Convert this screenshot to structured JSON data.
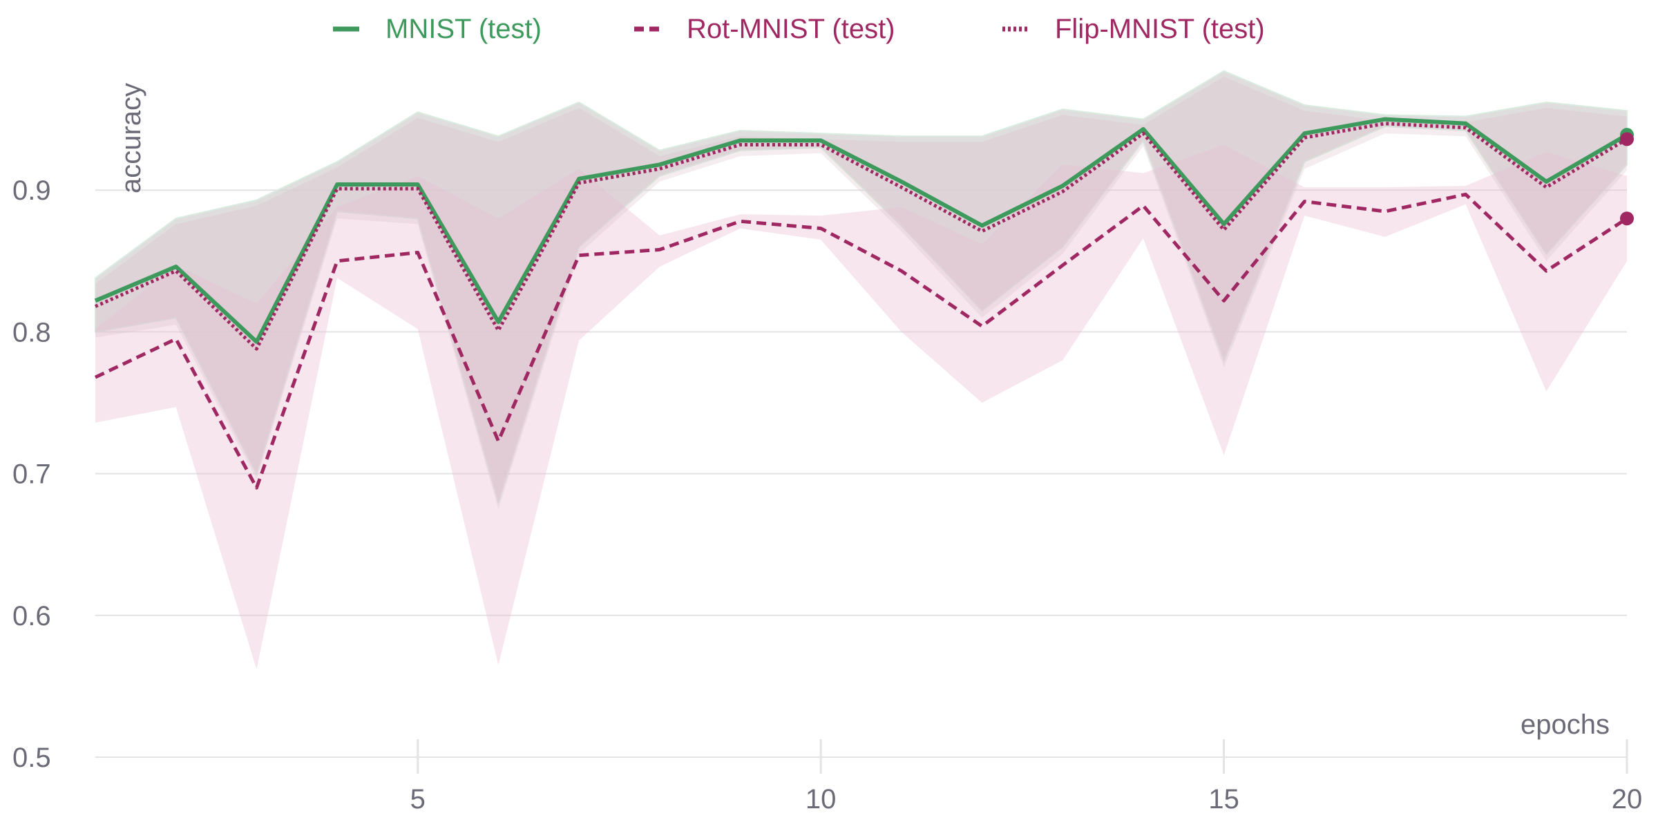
{
  "chart_data": {
    "type": "line",
    "xlabel": "epochs",
    "ylabel": "accuracy",
    "xlim": [
      1,
      20
    ],
    "ylim": [
      0.5,
      1.0
    ],
    "xticks": [
      5,
      10,
      15,
      20
    ],
    "yticks": [
      0.5,
      0.6,
      0.7,
      0.8,
      0.9
    ],
    "grid": "horizontal",
    "legend_position": "top",
    "x": [
      1,
      2,
      3,
      4,
      5,
      6,
      7,
      8,
      9,
      10,
      11,
      12,
      13,
      14,
      15,
      16,
      17,
      18,
      19,
      20
    ],
    "series": [
      {
        "name": "MNIST (test)",
        "color": "#3d9a5c",
        "style": "solid",
        "values": [
          0.822,
          0.846,
          0.793,
          0.904,
          0.904,
          0.807,
          0.908,
          0.918,
          0.935,
          0.935,
          0.906,
          0.875,
          0.903,
          0.943,
          0.876,
          0.94,
          0.95,
          0.947,
          0.906,
          0.939
        ],
        "lower": [
          0.8,
          0.81,
          0.7,
          0.885,
          0.88,
          0.68,
          0.86,
          0.91,
          0.928,
          0.93,
          0.875,
          0.815,
          0.86,
          0.935,
          0.78,
          0.92,
          0.945,
          0.942,
          0.855,
          0.918
        ],
        "upper": [
          0.838,
          0.88,
          0.893,
          0.92,
          0.955,
          0.938,
          0.962,
          0.928,
          0.942,
          0.94,
          0.938,
          0.938,
          0.957,
          0.95,
          0.984,
          0.96,
          0.953,
          0.952,
          0.962,
          0.956
        ]
      },
      {
        "name": "Rot-MNIST (test)",
        "color": "#a02862",
        "style": "dashed",
        "values": [
          0.768,
          0.795,
          0.69,
          0.85,
          0.856,
          0.723,
          0.854,
          0.858,
          0.878,
          0.873,
          0.843,
          0.804,
          0.847,
          0.889,
          0.822,
          0.892,
          0.885,
          0.897,
          0.843,
          0.88
        ],
        "lower": [
          0.736,
          0.747,
          0.562,
          0.838,
          0.802,
          0.565,
          0.794,
          0.846,
          0.873,
          0.865,
          0.8,
          0.75,
          0.78,
          0.866,
          0.713,
          0.882,
          0.867,
          0.89,
          0.758,
          0.85
        ],
        "upper": [
          0.802,
          0.847,
          0.82,
          0.888,
          0.91,
          0.88,
          0.915,
          0.868,
          0.883,
          0.882,
          0.888,
          0.862,
          0.918,
          0.912,
          0.932,
          0.902,
          0.902,
          0.903,
          0.927,
          0.91
        ]
      },
      {
        "name": "Flip-MNIST (test)",
        "color": "#a02862",
        "style": "dotted",
        "values": [
          0.818,
          0.843,
          0.788,
          0.901,
          0.901,
          0.801,
          0.905,
          0.915,
          0.932,
          0.932,
          0.902,
          0.871,
          0.899,
          0.94,
          0.872,
          0.937,
          0.947,
          0.944,
          0.902,
          0.936
        ],
        "lower": [
          0.796,
          0.805,
          0.696,
          0.88,
          0.876,
          0.675,
          0.855,
          0.906,
          0.924,
          0.926,
          0.871,
          0.81,
          0.855,
          0.931,
          0.775,
          0.915,
          0.94,
          0.938,
          0.85,
          0.914
        ],
        "upper": [
          0.834,
          0.876,
          0.889,
          0.916,
          0.951,
          0.934,
          0.958,
          0.924,
          0.938,
          0.936,
          0.934,
          0.934,
          0.953,
          0.946,
          0.98,
          0.956,
          0.949,
          0.948,
          0.958,
          0.952
        ]
      }
    ]
  }
}
